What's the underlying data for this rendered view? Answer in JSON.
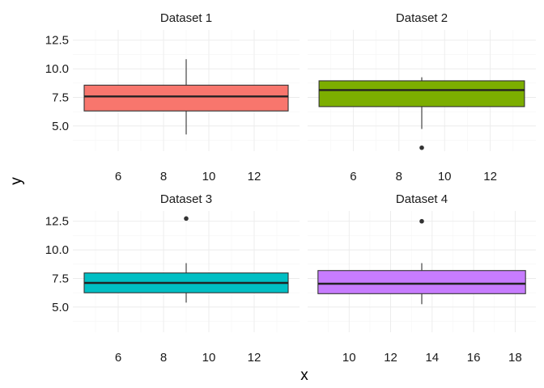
{
  "chart_data": {
    "type": "boxplot",
    "layout": "facet-wrap 2x2",
    "xlabel": "x",
    "ylabel": "y",
    "ylim": [
      2.8,
      13.4
    ],
    "y_ticks": [
      "5.0",
      "7.5",
      "10.0",
      "12.5"
    ],
    "y_tick_values": [
      5,
      7.5,
      10,
      12.5
    ],
    "grid": true,
    "legend": "none",
    "facets": [
      {
        "title": "Dataset 1",
        "color": "#F8766D",
        "xlim": [
          4,
          14
        ],
        "x_ticks": [
          "6",
          "8",
          "10",
          "12"
        ],
        "x_tick_values": [
          6,
          8,
          10,
          12
        ],
        "box": {
          "x_min": 4.5,
          "x_max": 13.5,
          "x_center": 9,
          "lower_whisker": 4.26,
          "q1": 6.315,
          "median": 7.58,
          "q3": 8.57,
          "upper_whisker": 10.84
        },
        "outliers": []
      },
      {
        "title": "Dataset 2",
        "color": "#7CAE00",
        "xlim": [
          4,
          14
        ],
        "x_ticks": [
          "6",
          "8",
          "10",
          "12"
        ],
        "x_tick_values": [
          6,
          8,
          10,
          12
        ],
        "box": {
          "x_min": 4.5,
          "x_max": 13.5,
          "x_center": 9,
          "lower_whisker": 4.74,
          "q1": 6.695,
          "median": 8.14,
          "q3": 8.95,
          "upper_whisker": 9.26
        },
        "outliers": [
          {
            "x": 9,
            "y": 3.1
          }
        ]
      },
      {
        "title": "Dataset 3",
        "color": "#00BFC4",
        "xlim": [
          4,
          14
        ],
        "x_ticks": [
          "6",
          "8",
          "10",
          "12"
        ],
        "x_tick_values": [
          6,
          8,
          10,
          12
        ],
        "box": {
          "x_min": 4.5,
          "x_max": 13.5,
          "x_center": 9,
          "lower_whisker": 5.39,
          "q1": 6.25,
          "median": 7.11,
          "q3": 7.98,
          "upper_whisker": 8.84
        },
        "outliers": [
          {
            "x": 9,
            "y": 12.74
          }
        ]
      },
      {
        "title": "Dataset 4",
        "color": "#C77CFF",
        "xlim": [
          8,
          19
        ],
        "x_ticks": [
          "10",
          "12",
          "14",
          "16",
          "18"
        ],
        "x_tick_values": [
          10,
          12,
          14,
          16,
          18
        ],
        "box": {
          "x_min": 8.5,
          "x_max": 18.5,
          "x_center": 13.5,
          "lower_whisker": 5.25,
          "q1": 6.17,
          "median": 7.04,
          "q3": 8.19,
          "upper_whisker": 8.84
        },
        "outliers": [
          {
            "x": 13.5,
            "y": 12.5
          }
        ]
      }
    ]
  }
}
